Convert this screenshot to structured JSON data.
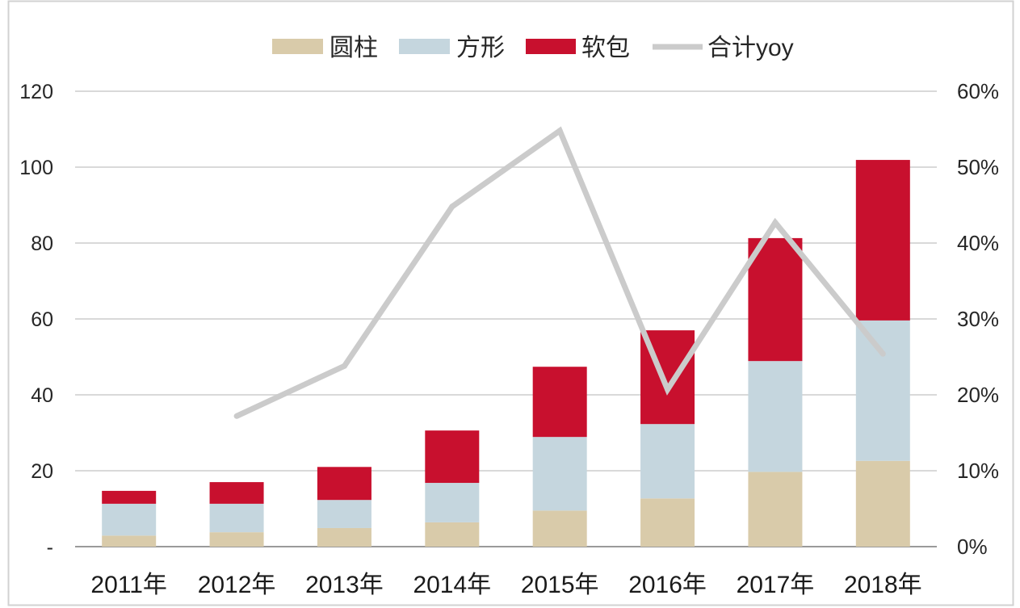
{
  "chart_data": {
    "type": "bar",
    "stacked": true,
    "categories": [
      "2011年",
      "2012年",
      "2013年",
      "2014年",
      "2015年",
      "2016年",
      "2017年",
      "2018年"
    ],
    "series": [
      {
        "name": "圆柱",
        "kind": "bar",
        "axis": "left",
        "color": "#d9cbaa",
        "values": [
          2.9,
          3.8,
          4.9,
          6.4,
          9.5,
          12.7,
          19.7,
          22.6
        ]
      },
      {
        "name": "方形",
        "kind": "bar",
        "axis": "left",
        "color": "#c5d6de",
        "values": [
          8.4,
          7.5,
          7.4,
          10.4,
          19.4,
          19.6,
          29.2,
          37.0
        ]
      },
      {
        "name": "软包",
        "kind": "bar",
        "axis": "left",
        "color": "#c8102e",
        "values": [
          3.4,
          5.7,
          8.7,
          13.8,
          18.5,
          24.7,
          32.4,
          42.3
        ]
      },
      {
        "name": "合计yoy",
        "kind": "line",
        "axis": "right",
        "unit": "%",
        "color": "#cbcbcb",
        "values": [
          null,
          17.2,
          23.8,
          44.8,
          54.8,
          20.7,
          42.7,
          25.4
        ]
      }
    ],
    "y_left": {
      "range": [
        0,
        120
      ],
      "ticks": [
        0,
        20,
        40,
        60,
        80,
        100,
        120
      ],
      "tick_labels": [
        "-",
        "20",
        "40",
        "60",
        "80",
        "100",
        "120"
      ]
    },
    "y_right": {
      "range": [
        0,
        60
      ],
      "ticks": [
        0,
        10,
        20,
        30,
        40,
        50,
        60
      ],
      "tick_labels": [
        "0%",
        "10%",
        "20%",
        "30%",
        "40%",
        "50%",
        "60%"
      ]
    },
    "grid": true,
    "legend": "top"
  }
}
